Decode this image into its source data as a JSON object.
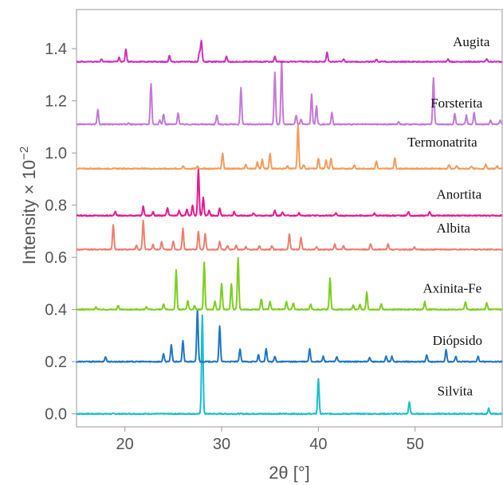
{
  "chart_data": {
    "type": "line",
    "xlabel": "2θ [°]",
    "ylabel_main": "Intensity × 10",
    "ylabel_exp": "−2",
    "xlim": [
      15,
      59
    ],
    "ylim": [
      -0.05,
      1.55
    ],
    "xticks": [
      20,
      30,
      40,
      50
    ],
    "xtick_labels": [
      "20",
      "30",
      "40",
      "50"
    ],
    "yticks": [
      0.0,
      0.2,
      0.4,
      0.6,
      0.8,
      1.0,
      1.2,
      1.4
    ],
    "ytick_labels": [
      "0.0",
      "0.2",
      "0.4",
      "0.6",
      "0.8",
      "1.0",
      "1.2",
      "1.4"
    ],
    "grid": false,
    "legend": "inline labels right of each trace",
    "series": [
      {
        "name": "Silvita",
        "color": "#17becf",
        "baseline": 0.0,
        "label_x": 52.3,
        "label_y": 0.07,
        "peaks": [
          [
            28.0,
            0.38
          ],
          [
            40.0,
            0.135
          ],
          [
            49.4,
            0.045
          ],
          [
            57.6,
            0.02
          ]
        ]
      },
      {
        "name": "Diópsido",
        "color": "#1f77c4",
        "baseline": 0.2,
        "label_x": 51.8,
        "label_y": 0.265,
        "peaks": [
          [
            18.0,
            0.02
          ],
          [
            24.0,
            0.03
          ],
          [
            24.8,
            0.065
          ],
          [
            26.0,
            0.08
          ],
          [
            27.5,
            0.2
          ],
          [
            29.8,
            0.135
          ],
          [
            31.9,
            0.05
          ],
          [
            33.8,
            0.025
          ],
          [
            34.6,
            0.05
          ],
          [
            35.5,
            0.02
          ],
          [
            39.1,
            0.05
          ],
          [
            40.5,
            0.02
          ],
          [
            41.9,
            0.02
          ],
          [
            45.3,
            0.015
          ],
          [
            47.0,
            0.02
          ],
          [
            47.6,
            0.02
          ],
          [
            51.2,
            0.025
          ],
          [
            53.2,
            0.045
          ],
          [
            54.2,
            0.02
          ],
          [
            56.5,
            0.02
          ]
        ]
      },
      {
        "name": "Axinita-Fe",
        "color": "#7ccf1f",
        "baseline": 0.4,
        "label_x": 50.8,
        "label_y": 0.465,
        "peaks": [
          [
            17.0,
            0.01
          ],
          [
            19.3,
            0.015
          ],
          [
            22.2,
            0.01
          ],
          [
            24.0,
            0.02
          ],
          [
            25.3,
            0.15
          ],
          [
            26.5,
            0.035
          ],
          [
            27.2,
            0.015
          ],
          [
            28.2,
            0.18
          ],
          [
            29.3,
            0.03
          ],
          [
            30.0,
            0.1
          ],
          [
            31.0,
            0.1
          ],
          [
            31.7,
            0.2
          ],
          [
            34.1,
            0.04
          ],
          [
            35.0,
            0.03
          ],
          [
            36.7,
            0.03
          ],
          [
            37.4,
            0.025
          ],
          [
            39.2,
            0.02
          ],
          [
            41.2,
            0.12
          ],
          [
            43.6,
            0.015
          ],
          [
            44.3,
            0.02
          ],
          [
            45.0,
            0.065
          ],
          [
            46.5,
            0.02
          ],
          [
            51.0,
            0.03
          ],
          [
            55.2,
            0.03
          ],
          [
            57.4,
            0.025
          ]
        ]
      },
      {
        "name": "Albita",
        "color": "#ef7f6e",
        "baseline": 0.63,
        "label_x": 52.2,
        "label_y": 0.695,
        "peaks": [
          [
            18.8,
            0.095
          ],
          [
            21.2,
            0.015
          ],
          [
            21.9,
            0.11
          ],
          [
            22.9,
            0.02
          ],
          [
            23.8,
            0.03
          ],
          [
            25.0,
            0.03
          ],
          [
            26.0,
            0.08
          ],
          [
            27.6,
            0.07
          ],
          [
            28.3,
            0.06
          ],
          [
            29.8,
            0.03
          ],
          [
            30.6,
            0.015
          ],
          [
            31.5,
            0.015
          ],
          [
            32.5,
            0.01
          ],
          [
            33.9,
            0.015
          ],
          [
            35.2,
            0.015
          ],
          [
            37.0,
            0.06
          ],
          [
            38.2,
            0.045
          ],
          [
            39.8,
            0.01
          ],
          [
            41.7,
            0.02
          ],
          [
            42.6,
            0.015
          ],
          [
            45.4,
            0.02
          ],
          [
            47.2,
            0.02
          ],
          [
            49.9,
            0.01
          ]
        ]
      },
      {
        "name": "Anortita",
        "color": "#e8198f",
        "baseline": 0.76,
        "label_x": 52.2,
        "label_y": 0.825,
        "peaks": [
          [
            19.0,
            0.015
          ],
          [
            21.9,
            0.035
          ],
          [
            22.9,
            0.015
          ],
          [
            24.4,
            0.03
          ],
          [
            25.6,
            0.02
          ],
          [
            26.4,
            0.025
          ],
          [
            27.0,
            0.04
          ],
          [
            27.6,
            0.18
          ],
          [
            28.1,
            0.07
          ],
          [
            28.7,
            0.02
          ],
          [
            29.8,
            0.03
          ],
          [
            31.3,
            0.015
          ],
          [
            33.3,
            0.01
          ],
          [
            35.5,
            0.02
          ],
          [
            36.3,
            0.015
          ],
          [
            38.0,
            0.01
          ],
          [
            41.8,
            0.01
          ],
          [
            45.8,
            0.01
          ],
          [
            49.3,
            0.015
          ],
          [
            51.5,
            0.015
          ]
        ]
      },
      {
        "name": "Termonatrita",
        "color": "#f59c5a",
        "baseline": 0.94,
        "label_x": 49.2,
        "label_y": 1.025,
        "peaks": [
          [
            26.0,
            0.01
          ],
          [
            27.5,
            0.01
          ],
          [
            30.1,
            0.06
          ],
          [
            32.5,
            0.015
          ],
          [
            33.7,
            0.025
          ],
          [
            34.2,
            0.035
          ],
          [
            35.0,
            0.06
          ],
          [
            36.8,
            0.01
          ],
          [
            37.9,
            0.17
          ],
          [
            38.5,
            0.015
          ],
          [
            40.0,
            0.04
          ],
          [
            40.8,
            0.035
          ],
          [
            41.3,
            0.04
          ],
          [
            43.7,
            0.015
          ],
          [
            46.0,
            0.03
          ],
          [
            47.9,
            0.04
          ],
          [
            53.5,
            0.015
          ],
          [
            54.3,
            0.01
          ],
          [
            55.8,
            0.01
          ],
          [
            57.3,
            0.015
          ],
          [
            58.5,
            0.01
          ]
        ]
      },
      {
        "name": "Forsterita",
        "color": "#c47ad6",
        "baseline": 1.11,
        "label_x": 51.6,
        "label_y": 1.175,
        "peaks": [
          [
            17.2,
            0.055
          ],
          [
            20.4,
            0.005
          ],
          [
            22.7,
            0.155
          ],
          [
            23.6,
            0.015
          ],
          [
            24.0,
            0.04
          ],
          [
            25.5,
            0.045
          ],
          [
            29.5,
            0.035
          ],
          [
            32.0,
            0.14
          ],
          [
            35.5,
            0.2
          ],
          [
            36.2,
            0.24
          ],
          [
            37.7,
            0.035
          ],
          [
            38.2,
            0.02
          ],
          [
            39.3,
            0.115
          ],
          [
            39.8,
            0.07
          ],
          [
            41.4,
            0.045
          ],
          [
            48.3,
            0.01
          ],
          [
            51.9,
            0.18
          ],
          [
            54.1,
            0.04
          ],
          [
            55.3,
            0.035
          ],
          [
            56.1,
            0.045
          ],
          [
            57.8,
            0.015
          ],
          [
            58.8,
            0.015
          ]
        ]
      },
      {
        "name": "Augita",
        "color": "#cf2fc3",
        "baseline": 1.35,
        "label_x": 53.9,
        "label_y": 1.41,
        "peaks": [
          [
            17.6,
            0.01
          ],
          [
            19.4,
            0.015
          ],
          [
            20.1,
            0.05
          ],
          [
            24.6,
            0.025
          ],
          [
            27.7,
            0.035
          ],
          [
            27.9,
            0.08
          ],
          [
            30.5,
            0.02
          ],
          [
            35.5,
            0.02
          ],
          [
            40.9,
            0.035
          ],
          [
            42.6,
            0.01
          ],
          [
            46.0,
            0.01
          ],
          [
            53.4,
            0.01
          ],
          [
            57.4,
            0.01
          ]
        ]
      }
    ]
  }
}
